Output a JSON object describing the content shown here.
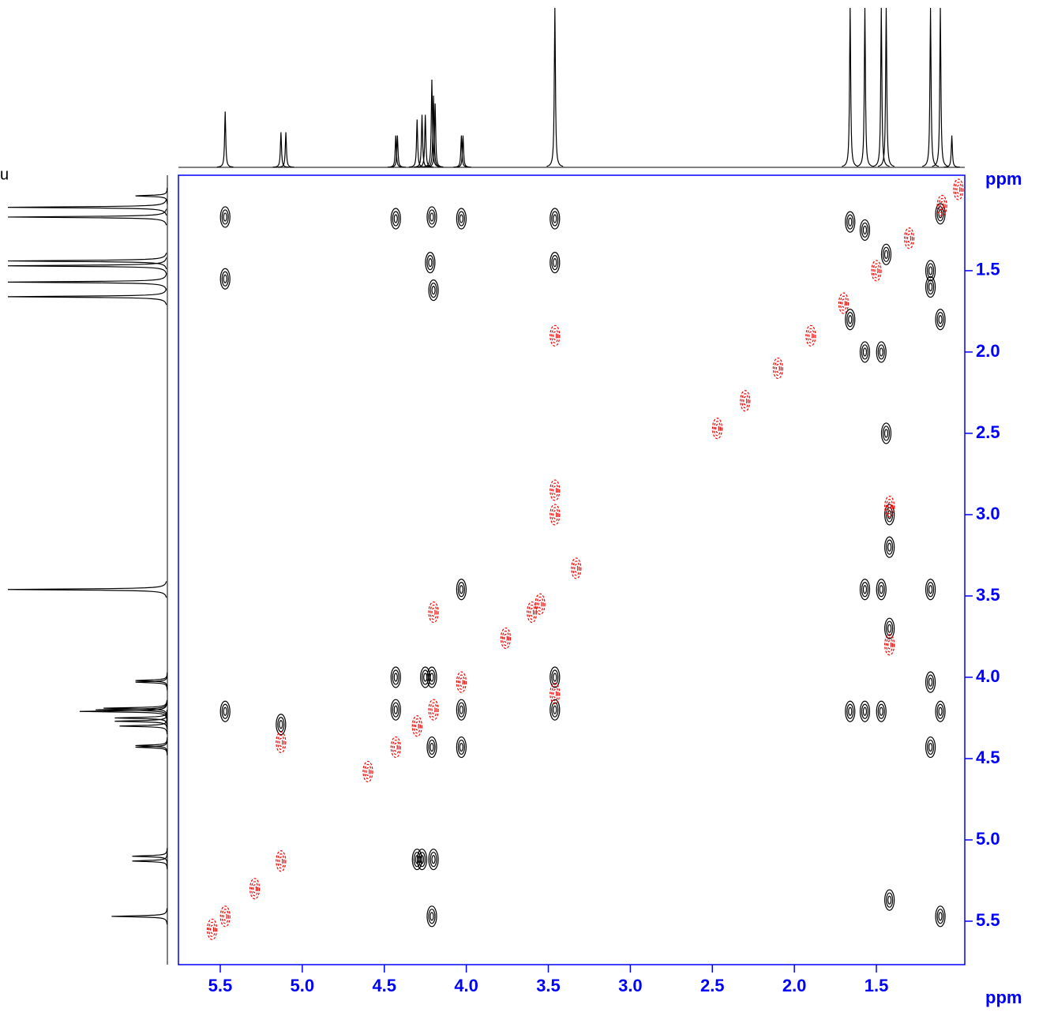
{
  "chart_data": {
    "type": "contour",
    "x_label": "ppm",
    "y_label": "ppm",
    "corner_label": "u",
    "axis_color": "#0000ff",
    "xlim": [
      5.755,
      0.961
    ],
    "ylim": [
      5.767,
      0.913
    ],
    "xticks": [
      5.5,
      {
        "value": 5,
        "label": "5.0"
      },
      4.5,
      {
        "value": 4,
        "label": "4.0"
      },
      3.5,
      {
        "value": 3,
        "label": "3.0"
      },
      2.5,
      {
        "value": 2,
        "label": "2.0"
      },
      1.5
    ],
    "yticks": [
      1.5,
      {
        "value": 2,
        "label": "2.0"
      },
      2.5,
      {
        "value": 3,
        "label": "3.0"
      },
      3.5,
      {
        "value": 4,
        "label": "4.0"
      },
      4.5,
      {
        "value": 5,
        "label": "5.0"
      },
      5.5
    ],
    "series": [
      {
        "color": "#000000",
        "x": [
          5.47,
          4.43,
          4.21,
          4.03,
          3.46,
          4.22,
          3.46,
          5.47,
          4.2,
          4.03,
          1.57,
          1.47,
          1.17,
          5.47,
          5.13,
          4.43,
          4.43,
          4.25,
          4.21,
          4.03,
          4.03,
          4.21,
          1.66,
          1.57,
          1.47,
          1.17,
          1.11,
          1.17,
          3.46,
          3.46,
          4.3,
          4.27,
          4.2,
          4.21,
          1.11,
          1.42,
          1.66,
          1.57,
          1.44,
          1.17,
          1.17,
          1.11,
          1.66,
          1.57,
          1.44,
          1.47,
          1.42,
          1.42,
          1.42,
          1.11
        ],
        "values": [
          1.17,
          1.18,
          1.17,
          1.18,
          1.18,
          1.45,
          1.45,
          1.55,
          1.62,
          3.46,
          3.46,
          3.46,
          3.46,
          4.21,
          4.29,
          4.0,
          4.2,
          4.0,
          4.0,
          4.2,
          4.43,
          4.43,
          4.21,
          4.21,
          4.21,
          4.03,
          4.21,
          4.43,
          4.0,
          4.2,
          5.12,
          5.12,
          5.12,
          5.47,
          5.47,
          5.37,
          1.2,
          1.25,
          1.4,
          1.5,
          1.6,
          1.8,
          1.8,
          2.0,
          2.5,
          2.0,
          3.0,
          3.2,
          3.7,
          1.15
        ]
      },
      {
        "color": "#ff0000",
        "x": [
          5.47,
          5.55,
          5.13,
          4.43,
          4.3,
          4.2,
          4.03,
          3.55,
          3.33,
          3.46,
          3.46,
          3.46,
          2.3,
          2.1,
          1.9,
          1.7,
          1.5,
          1.3,
          1.1,
          1.0,
          2.47,
          3.6,
          3.76,
          4.2,
          3.46,
          5.13,
          1.42,
          1.42,
          4.6,
          5.29
        ],
        "values": [
          5.47,
          5.55,
          5.13,
          4.43,
          4.3,
          4.2,
          4.03,
          3.55,
          3.33,
          2.85,
          3.0,
          4.1,
          2.3,
          2.1,
          1.9,
          1.7,
          1.5,
          1.3,
          1.1,
          1.0,
          2.47,
          3.6,
          3.76,
          3.6,
          1.9,
          4.4,
          2.95,
          3.8,
          4.58,
          5.3
        ]
      }
    ],
    "projection": {
      "color": "#000000",
      "x": [
        5.47,
        5.13,
        5.1,
        4.43,
        4.42,
        4.3,
        4.27,
        4.25,
        4.21,
        4.2,
        4.19,
        4.03,
        4.02,
        3.46,
        1.66,
        1.57,
        1.47,
        1.44,
        1.17,
        1.11,
        1.04
      ],
      "values": [
        35,
        22,
        22,
        20,
        20,
        30,
        33,
        33,
        55,
        45,
        40,
        20,
        20,
        100,
        100,
        100,
        100,
        100,
        100,
        100,
        20
      ]
    }
  }
}
